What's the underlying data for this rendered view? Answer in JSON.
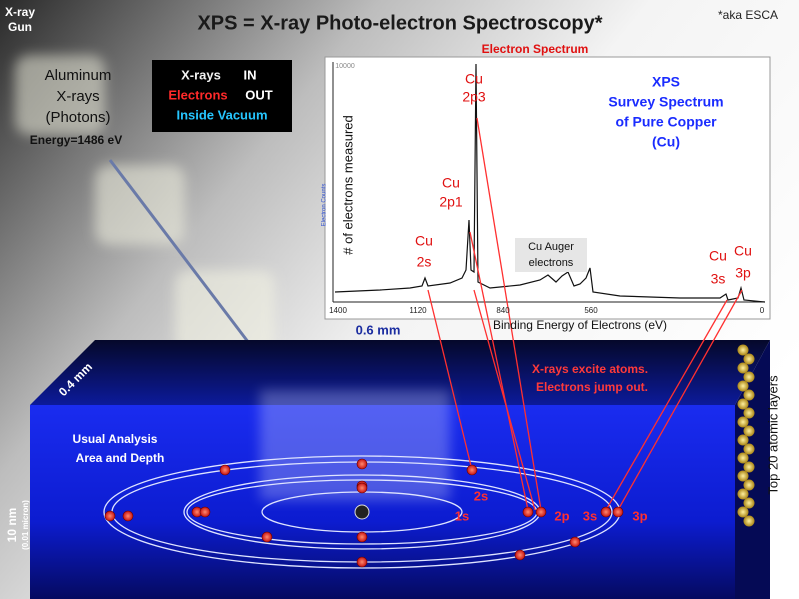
{
  "header": {
    "corner_label": [
      "X-ray",
      "Gun"
    ],
    "title": "XPS  =  X-ray Photo-electron Spectroscopy*",
    "footnote": "*aka ESCA"
  },
  "source": {
    "lines": [
      "Aluminum",
      "X-rays",
      "(Photons)"
    ],
    "energy": "Energy=1486 eV"
  },
  "legend_box": {
    "rows": [
      [
        "X-rays",
        "IN"
      ],
      [
        "Electrons",
        "OUT"
      ],
      [
        "Inside Vacuum"
      ]
    ]
  },
  "spectrum": {
    "title": "Electron Spectrum",
    "y_label": "# of electrons measured",
    "y_axis_small": "Electron Counts",
    "y_top": "10000",
    "x_ticks": [
      "1400",
      "1120",
      "840",
      "560",
      "0"
    ],
    "x_label": "Binding Energy of Electrons (eV)",
    "peaks": [
      [
        "Cu",
        "2p3"
      ],
      [
        "Cu",
        "2p1"
      ],
      [
        "Cu",
        "2s"
      ],
      [
        "Cu",
        "3s"
      ],
      [
        "Cu",
        "3p"
      ]
    ],
    "auger": [
      "Cu Auger",
      "electrons"
    ],
    "caption": [
      "XPS",
      "Survey Spectrum",
      "of Pure Copper",
      "(Cu)"
    ]
  },
  "sample": {
    "width": "0.6 mm",
    "depth_side": "0.4 mm",
    "thickness": "10 nm",
    "thickness_alt": "(0.01 micron)",
    "area": [
      "Usual Analysis",
      "Area and Depth"
    ],
    "note": [
      "X-rays excite atoms.",
      "Electrons  jump out."
    ],
    "layers": "Top 20 atomic layers",
    "shells": [
      "1s",
      "2s",
      "2p",
      "3s",
      "3p"
    ]
  }
}
